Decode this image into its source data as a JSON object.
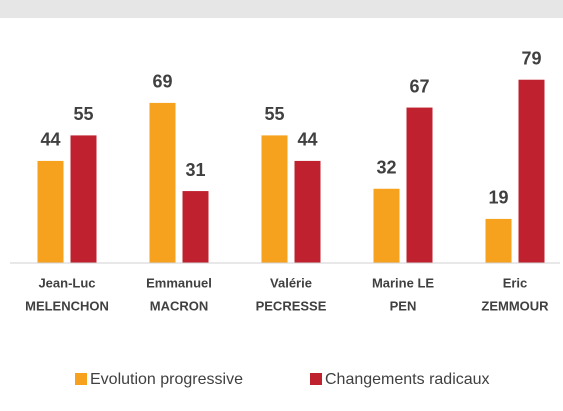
{
  "chart_data": {
    "type": "bar",
    "categories": [
      [
        "Jean-Luc",
        "MELENCHON"
      ],
      [
        "Emmanuel",
        "MACRON"
      ],
      [
        "Valérie",
        "PECRESSE"
      ],
      [
        "Marine LE",
        "PEN"
      ],
      [
        "Eric",
        "ZEMMOUR"
      ]
    ],
    "series": [
      {
        "name": "Evolution progressive",
        "color": "#f6a21e",
        "values": [
          44,
          69,
          55,
          32,
          19
        ]
      },
      {
        "name": "Changements radicaux",
        "color": "#c0212f",
        "values": [
          55,
          31,
          44,
          67,
          79
        ]
      }
    ]
  }
}
